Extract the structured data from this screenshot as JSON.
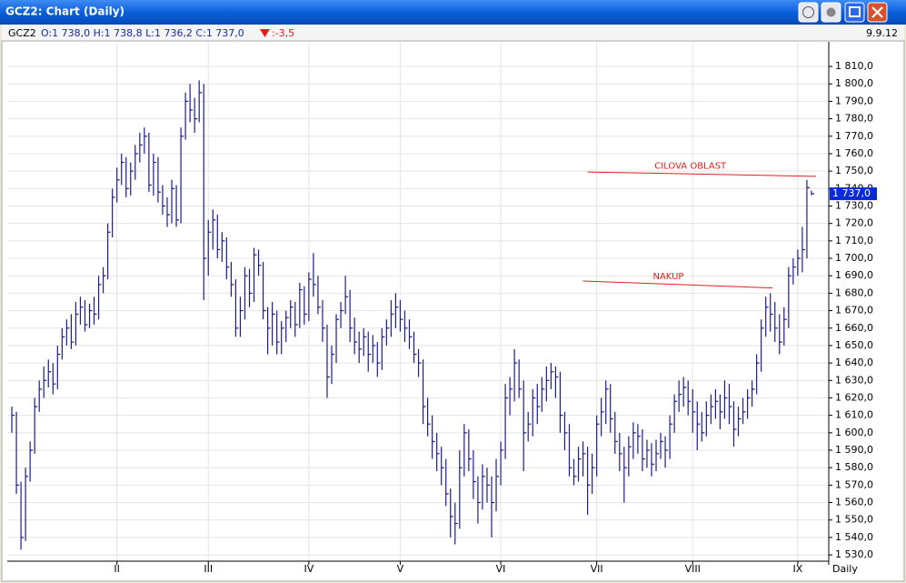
{
  "window": {
    "title": "GCZ2: Chart (Daily)"
  },
  "info": {
    "symbol": "GCZ2",
    "ohlc": "O:1 738,0 H:1 738,8 L:1 736,2 C:1 737,0",
    "change": ":-3,5",
    "date": "9.9.12"
  },
  "chart_data": {
    "type": "hlc",
    "period_label": "Daily",
    "color": "#1c1c8e",
    "xlim": [
      -1,
      176
    ],
    "xticks": [
      {
        "value": 23,
        "label": "II"
      },
      {
        "value": 43,
        "label": "III"
      },
      {
        "value": 65,
        "label": "IV"
      },
      {
        "value": 85,
        "label": "V"
      },
      {
        "value": 107,
        "label": "VI"
      },
      {
        "value": 128,
        "label": "VII"
      },
      {
        "value": 149,
        "label": "VIII"
      },
      {
        "value": 172,
        "label": "IX"
      }
    ],
    "ylim": [
      1526.4,
      1824.1
    ],
    "yticks": [
      {
        "value": 1530,
        "label": "1 530,0"
      },
      {
        "value": 1540,
        "label": "1 540,0"
      },
      {
        "value": 1550,
        "label": "1 550,0"
      },
      {
        "value": 1560,
        "label": "1 560,0"
      },
      {
        "value": 1570,
        "label": "1 570,0"
      },
      {
        "value": 1580,
        "label": "1 580,0"
      },
      {
        "value": 1590,
        "label": "1 590,0"
      },
      {
        "value": 1600,
        "label": "1 600,0"
      },
      {
        "value": 1610,
        "label": "1 610,0"
      },
      {
        "value": 1620,
        "label": "1 620,0"
      },
      {
        "value": 1630,
        "label": "1 630,0"
      },
      {
        "value": 1640,
        "label": "1 640,0"
      },
      {
        "value": 1650,
        "label": "1 650,0"
      },
      {
        "value": 1660,
        "label": "1 660,0"
      },
      {
        "value": 1670,
        "label": "1 670,0"
      },
      {
        "value": 1680,
        "label": "1 680,0"
      },
      {
        "value": 1690,
        "label": "1 690,0"
      },
      {
        "value": 1700,
        "label": "1 700,0"
      },
      {
        "value": 1710,
        "label": "1 710,0"
      },
      {
        "value": 1720,
        "label": "1 720,0"
      },
      {
        "value": 1730,
        "label": "1 730,0"
      },
      {
        "value": 1740,
        "label": "1 740,0"
      },
      {
        "value": 1750,
        "label": "1 750,0"
      },
      {
        "value": 1760,
        "label": "1 760,0"
      },
      {
        "value": 1770,
        "label": "1 770,0"
      },
      {
        "value": 1780,
        "label": "1 780,0"
      },
      {
        "value": 1790,
        "label": "1 790,0"
      },
      {
        "value": 1800,
        "label": "1 800,0"
      },
      {
        "value": 1810,
        "label": "1 810,0"
      }
    ],
    "grid": true,
    "high": [
      1615,
      1612,
      1572,
      1580,
      1595,
      1620,
      1630,
      1638,
      1642,
      1640,
      1650,
      1660,
      1665,
      1668,
      1675,
      1678,
      1676,
      1674,
      1678,
      1690,
      1695,
      1720,
      1740,
      1752,
      1760,
      1758,
      1755,
      1765,
      1772,
      1775,
      1772,
      1760,
      1758,
      1742,
      1735,
      1745,
      1742,
      1775,
      1795,
      1800,
      1792,
      1802,
      1800,
      1722,
      1728,
      1725,
      1715,
      1712,
      1698,
      1688,
      1678,
      1695,
      1694,
      1706,
      1705,
      1698,
      1672,
      1675,
      1670,
      1664,
      1670,
      1676,
      1675,
      1686,
      1684,
      1692,
      1703,
      1690,
      1676,
      1662,
      1650,
      1668,
      1675,
      1690,
      1682,
      1666,
      1658,
      1660,
      1658,
      1656,
      1652,
      1660,
      1665,
      1676,
      1680,
      1676,
      1670,
      1665,
      1658,
      1648,
      1642,
      1620,
      1610,
      1600,
      1592,
      1585,
      1568,
      1560,
      1590,
      1605,
      1602,
      1590,
      1575,
      1582,
      1580,
      1575,
      1585,
      1595,
      1628,
      1632,
      1648,
      1642,
      1630,
      1612,
      1625,
      1628,
      1632,
      1638,
      1640,
      1638,
      1635,
      1612,
      1605,
      1585,
      1592,
      1595,
      1592,
      1588,
      1610,
      1620,
      1630,
      1628,
      1612,
      1600,
      1592,
      1598,
      1606,
      1605,
      1602,
      1596,
      1594,
      1596,
      1600,
      1598,
      1610,
      1622,
      1630,
      1632,
      1630,
      1625,
      1618,
      1612,
      1618,
      1622,
      1625,
      1622,
      1630,
      1628,
      1618,
      1615,
      1620,
      1625,
      1630,
      1645,
      1665,
      1678,
      1680,
      1675,
      1668,
      1672,
      1695,
      1700,
      1705,
      1718,
      1745,
      1738.8
    ],
    "low": [
      1600,
      1565,
      1533,
      1538,
      1572,
      1588,
      1612,
      1620,
      1626,
      1622,
      1625,
      1642,
      1650,
      1648,
      1650,
      1662,
      1658,
      1660,
      1662,
      1665,
      1680,
      1688,
      1712,
      1732,
      1742,
      1735,
      1736,
      1745,
      1755,
      1760,
      1738,
      1736,
      1732,
      1725,
      1718,
      1720,
      1718,
      1720,
      1768,
      1778,
      1772,
      1778,
      1676,
      1690,
      1705,
      1700,
      1698,
      1688,
      1678,
      1655,
      1655,
      1665,
      1672,
      1675,
      1690,
      1665,
      1645,
      1650,
      1645,
      1645,
      1652,
      1660,
      1655,
      1660,
      1662,
      1664,
      1678,
      1668,
      1652,
      1620,
      1628,
      1640,
      1660,
      1668,
      1652,
      1645,
      1640,
      1644,
      1635,
      1640,
      1632,
      1636,
      1650,
      1655,
      1660,
      1658,
      1652,
      1648,
      1640,
      1632,
      1605,
      1598,
      1585,
      1578,
      1570,
      1558,
      1540,
      1536,
      1545,
      1575,
      1578,
      1562,
      1548,
      1556,
      1560,
      1540,
      1555,
      1570,
      1585,
      1610,
      1618,
      1620,
      1578,
      1595,
      1598,
      1605,
      1612,
      1618,
      1625,
      1620,
      1600,
      1590,
      1575,
      1570,
      1572,
      1575,
      1553,
      1565,
      1575,
      1598,
      1605,
      1600,
      1588,
      1578,
      1560,
      1575,
      1585,
      1588,
      1578,
      1580,
      1575,
      1578,
      1585,
      1580,
      1585,
      1600,
      1612,
      1615,
      1610,
      1600,
      1590,
      1595,
      1598,
      1605,
      1608,
      1602,
      1608,
      1605,
      1592,
      1598,
      1605,
      1608,
      1615,
      1622,
      1635,
      1655,
      1658,
      1652,
      1645,
      1650,
      1660,
      1685,
      1690,
      1692,
      1700,
      1736.2
    ],
    "close": [
      1610,
      1570,
      1540,
      1575,
      1590,
      1615,
      1625,
      1630,
      1635,
      1628,
      1645,
      1655,
      1660,
      1652,
      1668,
      1672,
      1662,
      1670,
      1668,
      1685,
      1690,
      1715,
      1735,
      1745,
      1755,
      1740,
      1750,
      1760,
      1765,
      1770,
      1742,
      1755,
      1738,
      1730,
      1725,
      1740,
      1722,
      1770,
      1790,
      1785,
      1780,
      1795,
      1700,
      1715,
      1722,
      1705,
      1710,
      1695,
      1685,
      1660,
      1670,
      1690,
      1680,
      1702,
      1696,
      1670,
      1660,
      1668,
      1652,
      1660,
      1666,
      1672,
      1662,
      1682,
      1668,
      1688,
      1685,
      1672,
      1660,
      1632,
      1645,
      1665,
      1670,
      1678,
      1660,
      1652,
      1648,
      1655,
      1645,
      1650,
      1640,
      1655,
      1660,
      1668,
      1672,
      1665,
      1660,
      1655,
      1645,
      1640,
      1615,
      1605,
      1595,
      1588,
      1580,
      1565,
      1552,
      1548,
      1580,
      1600,
      1585,
      1572,
      1560,
      1575,
      1570,
      1560,
      1575,
      1590,
      1620,
      1625,
      1640,
      1625,
      1600,
      1605,
      1620,
      1615,
      1625,
      1630,
      1635,
      1632,
      1610,
      1600,
      1580,
      1575,
      1585,
      1588,
      1570,
      1580,
      1605,
      1612,
      1625,
      1608,
      1595,
      1588,
      1580,
      1592,
      1600,
      1598,
      1585,
      1590,
      1582,
      1588,
      1595,
      1590,
      1605,
      1618,
      1622,
      1626,
      1618,
      1612,
      1605,
      1600,
      1610,
      1615,
      1618,
      1612,
      1620,
      1615,
      1602,
      1608,
      1612,
      1620,
      1625,
      1640,
      1660,
      1672,
      1668,
      1660,
      1652,
      1665,
      1690,
      1695,
      1700,
      1705,
      1740.5,
      1737.0
    ],
    "last_label": "1 737,0",
    "annotations": [
      {
        "text": "CILOVA OBLAST",
        "color": "#e0201b",
        "x": [
          126,
          176
        ],
        "y": [
          1749.5,
          1747
        ]
      },
      {
        "text": "NAKUP",
        "color": "#e0201b",
        "x": [
          125,
          166.5
        ],
        "y": [
          1687,
          1683
        ]
      }
    ]
  }
}
